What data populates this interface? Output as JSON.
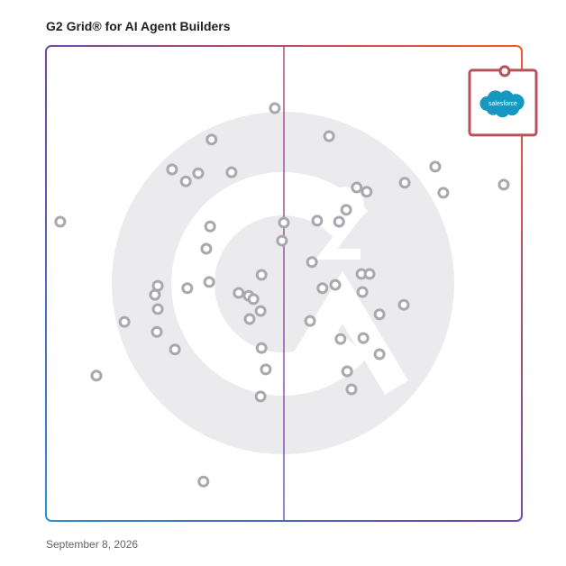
{
  "chart_data": {
    "type": "scatter",
    "title": "G2 Grid® for AI Agent Builders",
    "date": "September 8, 2026",
    "xlim": [
      0,
      100
    ],
    "ylim": [
      0,
      100
    ],
    "x": [
      48.1,
      34.8,
      59.5,
      26.5,
      29.4,
      32.0,
      39.0,
      3.0,
      34.5,
      33.7,
      50.0,
      49.6,
      57.0,
      61.6,
      63.1,
      65.3,
      67.4,
      75.4,
      81.8,
      83.5,
      96.2,
      45.3,
      55.9,
      34.3,
      29.7,
      23.5,
      22.9,
      23.5,
      40.5,
      42.6,
      43.6,
      45.1,
      42.8,
      58.1,
      60.8,
      66.3,
      68.0,
      66.5,
      75.2,
      70.1,
      55.5,
      16.5,
      23.3,
      27.1,
      61.9,
      66.7,
      70.1,
      45.3,
      46.2,
      63.3,
      10.6,
      64.2,
      45.1,
      33.1
    ],
    "values": [
      86.9,
      80.3,
      81.0,
      74.0,
      71.5,
      73.2,
      73.4,
      63.0,
      62.0,
      57.3,
      62.8,
      59.0,
      63.2,
      63.0,
      65.5,
      70.2,
      69.3,
      71.2,
      74.6,
      69.1,
      70.8,
      51.8,
      54.5,
      50.3,
      49.0,
      49.5,
      47.6,
      44.6,
      48.0,
      47.4,
      46.7,
      44.2,
      42.5,
      49.0,
      49.7,
      52.0,
      52.0,
      48.2,
      45.5,
      43.5,
      42.1,
      41.9,
      39.8,
      36.1,
      38.3,
      38.5,
      35.1,
      36.4,
      31.9,
      31.5,
      30.6,
      27.7,
      26.2,
      8.3
    ],
    "point_color": "#a8a8ae",
    "highlight": {
      "label": "salesforce",
      "x": 96.4,
      "y": 94.7,
      "color": "#b5525a",
      "logo_color": "#1798c1"
    }
  }
}
